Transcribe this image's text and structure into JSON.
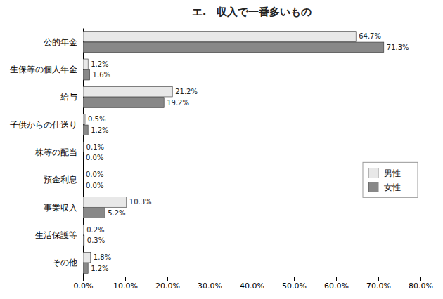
{
  "chart_data": {
    "type": "bar",
    "orientation": "horizontal",
    "title": "エ.　収入で一番多いもの",
    "categories": [
      "公的年金",
      "生保等の個人年金",
      "給与",
      "子供からの仕送り",
      "株等の配当",
      "預金利息",
      "事業収入",
      "生活保護等",
      "その他"
    ],
    "series": [
      {
        "name": "男性",
        "color": "#e8e8e8",
        "values": [
          64.7,
          1.2,
          21.2,
          0.5,
          0.1,
          0.0,
          10.3,
          0.2,
          1.8
        ],
        "value_labels": [
          "64.7%",
          "1.2%",
          "21.2%",
          "0.5%",
          "0.1%",
          "0.0%",
          "10.3%",
          "0.2%",
          "1.8%"
        ]
      },
      {
        "name": "女性",
        "color": "#888888",
        "values": [
          71.3,
          1.6,
          19.2,
          1.2,
          0.0,
          0.0,
          5.2,
          0.3,
          1.2
        ],
        "value_labels": [
          "71.3%",
          "1.6%",
          "19.2%",
          "1.2%",
          "0.0%",
          "0.0%",
          "5.2%",
          "0.3%",
          "1.2%"
        ]
      }
    ],
    "xlim": [
      0,
      80
    ],
    "xticks": [
      {
        "value": 0,
        "label": "0.0%"
      },
      {
        "value": 10,
        "label": "10.0%"
      },
      {
        "value": 20,
        "label": "20.0%"
      },
      {
        "value": 30,
        "label": "30.0%"
      },
      {
        "value": 40,
        "label": "40.0%"
      },
      {
        "value": 50,
        "label": "50.0%"
      },
      {
        "value": 60,
        "label": "60.0%"
      },
      {
        "value": 70,
        "label": "70.0%"
      },
      {
        "value": 80,
        "label": "80.0%"
      }
    ],
    "data_labels": true,
    "legend": "right",
    "grid": false
  }
}
